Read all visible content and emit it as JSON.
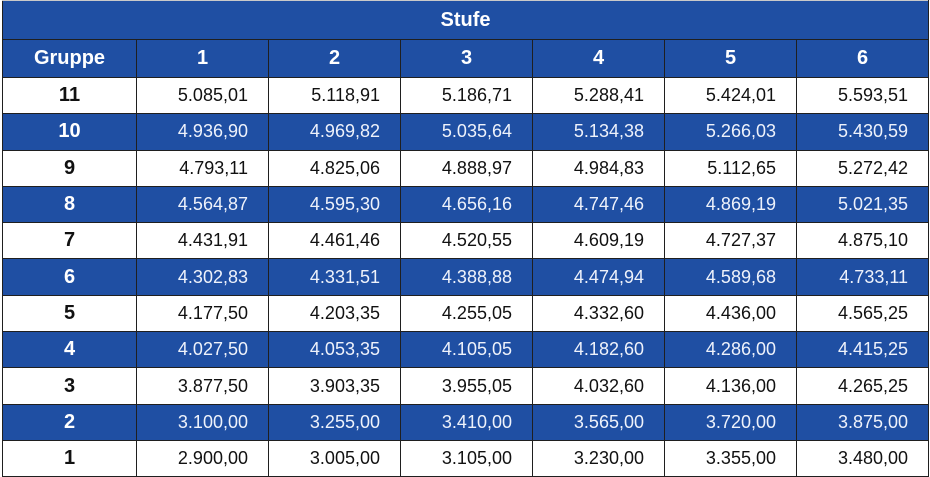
{
  "table": {
    "title": "Stufe",
    "group_header": "Gruppe",
    "levels": [
      "1",
      "2",
      "3",
      "4",
      "5",
      "6"
    ],
    "rows": [
      {
        "group": "11",
        "values": [
          "5.085,01",
          "5.118,91",
          "5.186,71",
          "5.288,41",
          "5.424,01",
          "5.593,51"
        ]
      },
      {
        "group": "10",
        "values": [
          "4.936,90",
          "4.969,82",
          "5.035,64",
          "5.134,38",
          "5.266,03",
          "5.430,59"
        ]
      },
      {
        "group": "9",
        "values": [
          "4.793,11",
          "4.825,06",
          "4.888,97",
          "4.984,83",
          "5.112,65",
          "5.272,42"
        ]
      },
      {
        "group": "8",
        "values": [
          "4.564,87",
          "4.595,30",
          "4.656,16",
          "4.747,46",
          "4.869,19",
          "5.021,35"
        ]
      },
      {
        "group": "7",
        "values": [
          "4.431,91",
          "4.461,46",
          "4.520,55",
          "4.609,19",
          "4.727,37",
          "4.875,10"
        ]
      },
      {
        "group": "6",
        "values": [
          "4.302,83",
          "4.331,51",
          "4.388,88",
          "4.474,94",
          "4.589,68",
          "4.733,11"
        ]
      },
      {
        "group": "5",
        "values": [
          "4.177,50",
          "4.203,35",
          "4.255,05",
          "4.332,60",
          "4.436,00",
          "4.565,25"
        ]
      },
      {
        "group": "4",
        "values": [
          "4.027,50",
          "4.053,35",
          "4.105,05",
          "4.182,60",
          "4.286,00",
          "4.415,25"
        ]
      },
      {
        "group": "3",
        "values": [
          "3.877,50",
          "3.903,35",
          "3.955,05",
          "4.032,60",
          "4.136,00",
          "4.265,25"
        ]
      },
      {
        "group": "2",
        "values": [
          "3.100,00",
          "3.255,00",
          "3.410,00",
          "3.565,00",
          "3.720,00",
          "3.875,00"
        ]
      },
      {
        "group": "1",
        "values": [
          "2.900,00",
          "3.005,00",
          "3.105,00",
          "3.230,00",
          "3.355,00",
          "3.480,00"
        ]
      }
    ]
  },
  "colors": {
    "header_blue": "#1f4fa3",
    "white": "#ffffff"
  }
}
